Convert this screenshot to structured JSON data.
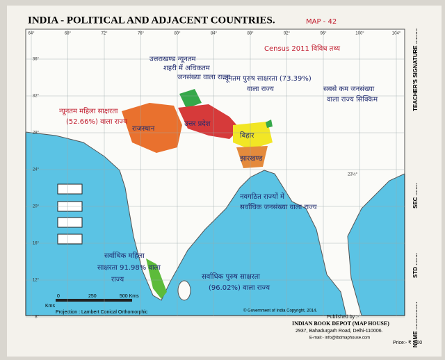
{
  "header": {
    "title": "INDIA - POLITICAL AND ADJACENT COUNTRIES.",
    "map_number": "MAP - 42",
    "note": "Census 2011 विविध तथ्य"
  },
  "longitudes": [
    "64°",
    "68°",
    "72°",
    "76°",
    "80°",
    "84°",
    "88°",
    "92°",
    "96°",
    "100°",
    "104°"
  ],
  "latitudes": [
    "36°",
    "32°",
    "28°",
    "24°",
    "20°",
    "16°",
    "12°",
    "8°"
  ],
  "tropic": "23½°",
  "annotations": [
    "न्यूनतम महिला साक्षरता",
    "(52.66%) वाला राज्य",
    "उत्तराखण्ड न्यूनतम",
    "शहरी में अधिकतम",
    "जनसंख्या वाला राज्य",
    "न्यूनतम पुरुष साक्षरता (73.39%)",
    "वाला राज्य",
    "सबसे कम जनसंख्या",
    "वाला राज्य सिक्किम",
    "नवगठित राज्यों में",
    "सर्वाधिक जनसंख्या वाला राज्य",
    "सर्वाधिक महिला",
    "साक्षरता 91.98% वाला",
    "राज्य",
    "सर्वाधिक पुरुष साक्षरता",
    "(96.02%) वाला राज्य"
  ],
  "state_labels": [
    "राजस्थान",
    "उत्तर प्रदेश",
    "बिहार",
    "झारखण्ड"
  ],
  "scale": {
    "unit": "Kms",
    "marks": [
      "0",
      "250",
      "500 Kms"
    ]
  },
  "projection": "Projection : Lambert Conical Orthomorphic",
  "copyright": "© Government of India Copyright, 2014.",
  "publisher": {
    "label": "Published by :-",
    "name": "INDIAN BOOK DEPOT (MAP HOUSE)",
    "address": "2937, Bahadurgarh Road, Delhi-110006.",
    "email": "E-mail:- info@ibdmaphouse.com",
    "price": "Price:- ₹ 2.00"
  },
  "side": [
    "NAME ..................",
    "STD ........",
    "SEC ........",
    "TEACHER'S SIGNATURE .........."
  ]
}
